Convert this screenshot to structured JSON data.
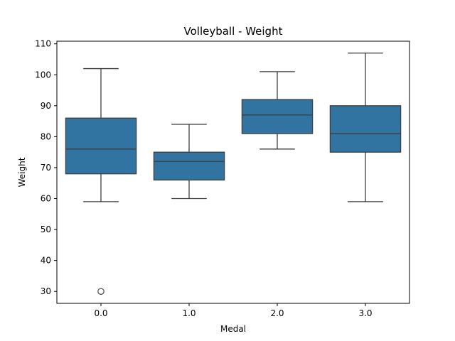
{
  "chart_data": {
    "type": "box",
    "title": "Volleyball - Weight",
    "xlabel": "Medal",
    "ylabel": "Weight",
    "ylim": [
      26.15,
      110.85
    ],
    "yticks": [
      30,
      40,
      50,
      60,
      70,
      80,
      90,
      100,
      110
    ],
    "grid": false,
    "box_color": "#3274a1",
    "line_color": "#3d3d3d",
    "categories": [
      "0.0",
      "1.0",
      "2.0",
      "3.0"
    ],
    "boxes": [
      {
        "category": "0.0",
        "whisker_low": 59,
        "q1": 68,
        "median": 76,
        "q3": 86,
        "whisker_high": 102,
        "outliers": [
          30
        ]
      },
      {
        "category": "1.0",
        "whisker_low": 60,
        "q1": 66,
        "median": 72,
        "q3": 75,
        "whisker_high": 84,
        "outliers": []
      },
      {
        "category": "2.0",
        "whisker_low": 76,
        "q1": 81,
        "median": 87,
        "q3": 92,
        "whisker_high": 101,
        "outliers": []
      },
      {
        "category": "3.0",
        "whisker_low": 59,
        "q1": 75,
        "median": 81,
        "q3": 90,
        "whisker_high": 107,
        "outliers": []
      }
    ]
  }
}
